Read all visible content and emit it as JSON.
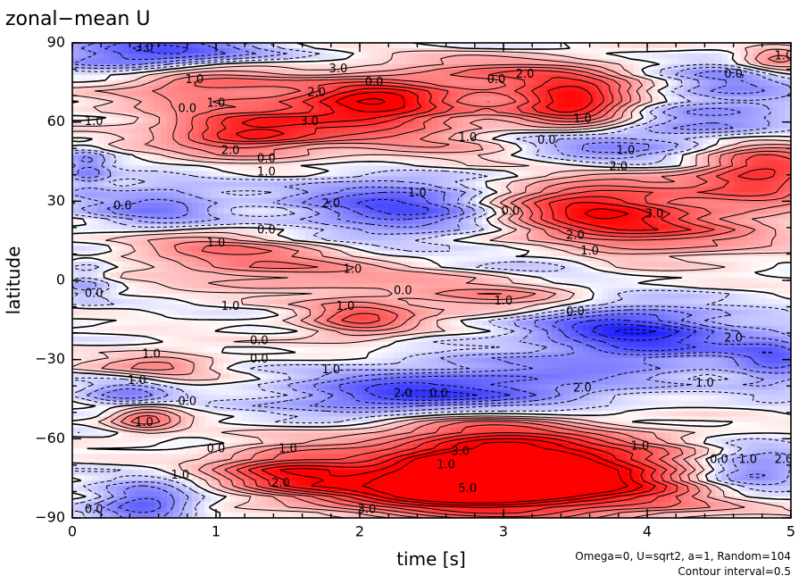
{
  "chart_data": {
    "type": "heatmap",
    "title": "zonal−mean U",
    "xlabel": "time [s]",
    "ylabel": "latitude",
    "xlim": [
      0,
      5
    ],
    "ylim": [
      -90,
      90
    ],
    "x_ticks": [
      {
        "value": 0,
        "label": "0"
      },
      {
        "value": 1,
        "label": "1"
      },
      {
        "value": 2,
        "label": "2"
      },
      {
        "value": 3,
        "label": "3"
      },
      {
        "value": 4,
        "label": "4"
      },
      {
        "value": 5,
        "label": "5"
      }
    ],
    "y_ticks": [
      {
        "value": 90,
        "label": "90"
      },
      {
        "value": 60,
        "label": "60"
      },
      {
        "value": 30,
        "label": "30"
      },
      {
        "value": 0,
        "label": "0"
      },
      {
        "value": -30,
        "label": "−30"
      },
      {
        "value": -60,
        "label": "−60"
      },
      {
        "value": -90,
        "label": "−90"
      }
    ],
    "footnote_lines": [
      "Omega=0, U=sqrt2, a=1, Random=104",
      "Contour interval=0.5"
    ],
    "contour_interval": 0.5,
    "colors": {
      "positive": "#ff0000",
      "negative": "#0000ff",
      "zero": "#ffffff"
    },
    "value_range": [
      -4,
      4
    ],
    "features": [
      {
        "t": 3.5,
        "lat": -75,
        "value": 4.2,
        "sx": 0.9,
        "sy": 10
      },
      {
        "t": 3.0,
        "lat": -70,
        "value": 3.5,
        "sx": 0.45,
        "sy": 9
      },
      {
        "t": 2.4,
        "lat": -78,
        "value": 3.0,
        "sx": 0.6,
        "sy": 7
      },
      {
        "t": 1.5,
        "lat": -72,
        "value": 2.8,
        "sx": 0.35,
        "sy": 6
      },
      {
        "t": 2.6,
        "lat": -55,
        "value": 1.8,
        "sx": 0.6,
        "sy": 6
      },
      {
        "t": 0.5,
        "lat": -52,
        "value": 2.5,
        "sx": 0.18,
        "sy": 4
      },
      {
        "t": 4.7,
        "lat": -72,
        "value": -3.2,
        "sx": 0.35,
        "sy": 7
      },
      {
        "t": 0.5,
        "lat": -85,
        "value": -2.5,
        "sx": 0.25,
        "sy": 6
      },
      {
        "t": 0.4,
        "lat": -44,
        "value": -1.8,
        "sx": 0.22,
        "sy": 5
      },
      {
        "t": 2.2,
        "lat": -45,
        "value": -2.5,
        "sx": 0.55,
        "sy": 7
      },
      {
        "t": 3.1,
        "lat": -40,
        "value": -1.8,
        "sx": 0.6,
        "sy": 8
      },
      {
        "t": 4.0,
        "lat": -22,
        "value": -2.6,
        "sx": 0.45,
        "sy": 8
      },
      {
        "t": 4.9,
        "lat": -30,
        "value": -2.0,
        "sx": 0.25,
        "sy": 8
      },
      {
        "t": 3.5,
        "lat": -15,
        "value": -1.4,
        "sx": 0.5,
        "sy": 6
      },
      {
        "t": 2.0,
        "lat": -15,
        "value": 2.5,
        "sx": 0.28,
        "sy": 5
      },
      {
        "t": 3.0,
        "lat": -8,
        "value": 1.8,
        "sx": 0.45,
        "sy": 5
      },
      {
        "t": 0.6,
        "lat": -32,
        "value": 1.6,
        "sx": 0.3,
        "sy": 4
      },
      {
        "t": 1.3,
        "lat": 8,
        "value": 1.6,
        "sx": 0.5,
        "sy": 6
      },
      {
        "t": 0.8,
        "lat": 14,
        "value": 1.0,
        "sx": 0.4,
        "sy": 5
      },
      {
        "t": 3.3,
        "lat": 8,
        "value": -1.0,
        "sx": 0.35,
        "sy": 6
      },
      {
        "t": 3.6,
        "lat": 28,
        "value": 3.6,
        "sx": 0.5,
        "sy": 10
      },
      {
        "t": 4.8,
        "lat": 42,
        "value": 3.5,
        "sx": 0.35,
        "sy": 9
      },
      {
        "t": 4.2,
        "lat": 18,
        "value": 1.5,
        "sx": 0.6,
        "sy": 7
      },
      {
        "t": 2.3,
        "lat": 28,
        "value": -2.6,
        "sx": 0.55,
        "sy": 9
      },
      {
        "t": 0.6,
        "lat": 28,
        "value": -1.8,
        "sx": 0.35,
        "sy": 7
      },
      {
        "t": 3.5,
        "lat": 50,
        "value": -2.4,
        "sx": 0.5,
        "sy": 8
      },
      {
        "t": 4.6,
        "lat": 60,
        "value": -1.6,
        "sx": 0.45,
        "sy": 10
      },
      {
        "t": 1.8,
        "lat": 62,
        "value": 2.2,
        "sx": 0.9,
        "sy": 9
      },
      {
        "t": 1.2,
        "lat": 55,
        "value": 2.4,
        "sx": 0.35,
        "sy": 5
      },
      {
        "t": 2.1,
        "lat": 68,
        "value": 2.8,
        "sx": 0.35,
        "sy": 6
      },
      {
        "t": 3.5,
        "lat": 67,
        "value": 4.0,
        "sx": 0.3,
        "sy": 7
      },
      {
        "t": 3.0,
        "lat": 78,
        "value": 1.8,
        "sx": 0.5,
        "sy": 5
      },
      {
        "t": 2.9,
        "lat": 48,
        "value": 1.2,
        "sx": 0.5,
        "sy": 6
      },
      {
        "t": 0.9,
        "lat": 76,
        "value": 2.0,
        "sx": 0.4,
        "sy": 5
      },
      {
        "t": 0.6,
        "lat": 86,
        "value": -3.0,
        "sx": 0.5,
        "sy": 5
      },
      {
        "t": 4.9,
        "lat": 84,
        "value": 2.0,
        "sx": 0.2,
        "sy": 4
      },
      {
        "t": 4.6,
        "lat": 78,
        "value": -1.2,
        "sx": 0.3,
        "sy": 6
      },
      {
        "t": 0.1,
        "lat": 42,
        "value": -1.6,
        "sx": 0.12,
        "sy": 6
      },
      {
        "t": 0.1,
        "lat": 0,
        "value": -1.0,
        "sx": 0.12,
        "sy": 6
      },
      {
        "t": 2.0,
        "lat": 0,
        "value": 1.0,
        "sx": 0.7,
        "sy": 5
      }
    ],
    "contour_labels": [
      {
        "t": 0.5,
        "lat": 88,
        "text": "3.0"
      },
      {
        "t": 1.85,
        "lat": 80,
        "text": "3.0"
      },
      {
        "t": 2.1,
        "lat": 75,
        "text": "0.0"
      },
      {
        "t": 0.85,
        "lat": 76,
        "text": "1.0"
      },
      {
        "t": 1.7,
        "lat": 71,
        "text": "2.0"
      },
      {
        "t": 1.0,
        "lat": 67,
        "text": "1.0"
      },
      {
        "t": 0.8,
        "lat": 65,
        "text": "0.0"
      },
      {
        "t": 1.65,
        "lat": 60,
        "text": "3.0"
      },
      {
        "t": 0.15,
        "lat": 60,
        "text": "1.0"
      },
      {
        "t": 2.95,
        "lat": 76,
        "text": "0.0"
      },
      {
        "t": 3.15,
        "lat": 78,
        "text": "2.0"
      },
      {
        "t": 3.55,
        "lat": 61,
        "text": "1.0"
      },
      {
        "t": 2.75,
        "lat": 54,
        "text": "1.0"
      },
      {
        "t": 3.3,
        "lat": 53,
        "text": "0.0"
      },
      {
        "t": 1.1,
        "lat": 49,
        "text": "2.0"
      },
      {
        "t": 1.35,
        "lat": 46,
        "text": "0.0"
      },
      {
        "t": 1.35,
        "lat": 41,
        "text": "1.0"
      },
      {
        "t": 3.85,
        "lat": 49,
        "text": "1.0"
      },
      {
        "t": 3.8,
        "lat": 43,
        "text": "2.0"
      },
      {
        "t": 2.4,
        "lat": 33,
        "text": "1.0"
      },
      {
        "t": 1.8,
        "lat": 29,
        "text": "2.0"
      },
      {
        "t": 0.35,
        "lat": 28,
        "text": "0.0"
      },
      {
        "t": 3.05,
        "lat": 26,
        "text": "0.0"
      },
      {
        "t": 4.05,
        "lat": 25,
        "text": "3.0"
      },
      {
        "t": 3.5,
        "lat": 17,
        "text": "2.0"
      },
      {
        "t": 3.6,
        "lat": 11,
        "text": "1.0"
      },
      {
        "t": 1.35,
        "lat": 19,
        "text": "0.0"
      },
      {
        "t": 1.0,
        "lat": 14,
        "text": "1.0"
      },
      {
        "t": 1.95,
        "lat": 4,
        "text": "1.0"
      },
      {
        "t": 0.15,
        "lat": -5,
        "text": "0.0"
      },
      {
        "t": 2.3,
        "lat": -4,
        "text": "0.0"
      },
      {
        "t": 1.1,
        "lat": -10,
        "text": "1.0"
      },
      {
        "t": 1.9,
        "lat": -10,
        "text": "1.0"
      },
      {
        "t": 3.0,
        "lat": -8,
        "text": "1.0"
      },
      {
        "t": 3.5,
        "lat": -12,
        "text": "0.0"
      },
      {
        "t": 1.3,
        "lat": -23,
        "text": "0.0"
      },
      {
        "t": 1.3,
        "lat": -30,
        "text": "0.0"
      },
      {
        "t": 0.55,
        "lat": -28,
        "text": "1.0"
      },
      {
        "t": 4.6,
        "lat": -22,
        "text": "2.0"
      },
      {
        "t": 1.8,
        "lat": -34,
        "text": "1.0"
      },
      {
        "t": 0.45,
        "lat": -38,
        "text": "1.0"
      },
      {
        "t": 2.3,
        "lat": -43,
        "text": "2.0"
      },
      {
        "t": 2.55,
        "lat": -43,
        "text": "0.0"
      },
      {
        "t": 3.55,
        "lat": -41,
        "text": "2.0"
      },
      {
        "t": 4.4,
        "lat": -39,
        "text": "1.0"
      },
      {
        "t": 0.8,
        "lat": -46,
        "text": "0.0"
      },
      {
        "t": 0.5,
        "lat": -54,
        "text": "1.0"
      },
      {
        "t": 1.0,
        "lat": -64,
        "text": "0.0"
      },
      {
        "t": 1.5,
        "lat": -64,
        "text": "1.0"
      },
      {
        "t": 2.7,
        "lat": -65,
        "text": "3.0"
      },
      {
        "t": 2.6,
        "lat": -70,
        "text": "1.0"
      },
      {
        "t": 3.95,
        "lat": -63,
        "text": "1.0"
      },
      {
        "t": 4.5,
        "lat": -68,
        "text": "0.0"
      },
      {
        "t": 4.7,
        "lat": -68,
        "text": "1.0"
      },
      {
        "t": 4.95,
        "lat": -68,
        "text": "2.0"
      },
      {
        "t": 0.75,
        "lat": -74,
        "text": "1.0"
      },
      {
        "t": 1.45,
        "lat": -77,
        "text": "2.0"
      },
      {
        "t": 2.75,
        "lat": -79,
        "text": "5.0"
      },
      {
        "t": 2.05,
        "lat": -87,
        "text": "3.0"
      },
      {
        "t": 0.15,
        "lat": -87,
        "text": "0.0"
      },
      {
        "t": 4.95,
        "lat": 85,
        "text": "1.0"
      },
      {
        "t": 4.6,
        "lat": 78,
        "text": "0.0"
      }
    ]
  }
}
